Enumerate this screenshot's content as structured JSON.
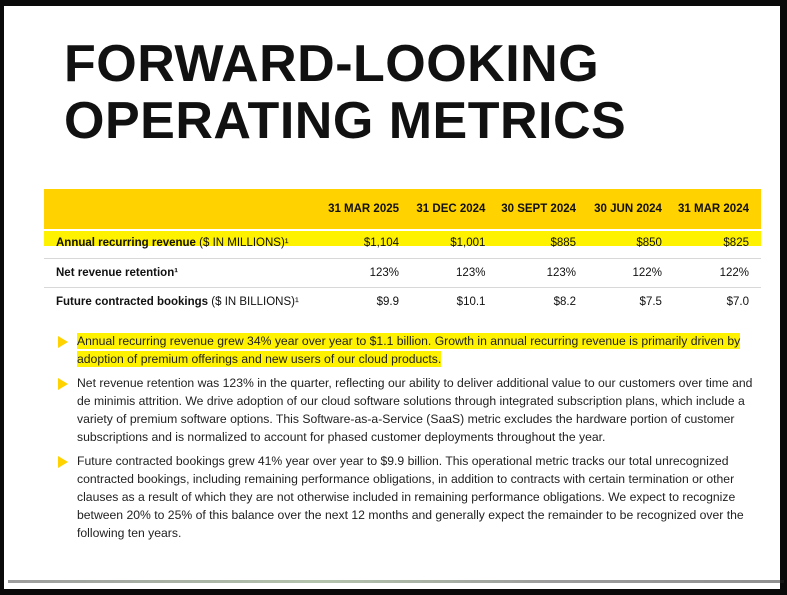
{
  "title_line1": "FORWARD-LOOKING",
  "title_line2": "OPERATING METRICS",
  "table": {
    "columns": [
      "",
      "31 MAR 2025",
      "31 DEC 2024",
      "30 SEPT 2024",
      "30 JUN 2024",
      "31 MAR 2024"
    ],
    "rows": [
      {
        "label": "Annual recurring revenue",
        "unit": " ($ IN MILLIONS)¹",
        "values": [
          "$1,104",
          "$1,001",
          "$885",
          "$850",
          "$825"
        ],
        "highlighted": true
      },
      {
        "label": "Net revenue retention¹",
        "unit": "",
        "values": [
          "123%",
          "123%",
          "123%",
          "122%",
          "122%"
        ],
        "highlighted": false
      },
      {
        "label": "Future contracted bookings",
        "unit": " ($ IN BILLIONS)¹",
        "values": [
          "$9.9",
          "$10.1",
          "$8.2",
          "$7.5",
          "$7.0"
        ],
        "highlighted": false
      }
    ]
  },
  "bullets": [
    {
      "text": "Annual recurring revenue grew 34% year over year to $1.1 billion. Growth in annual recurring revenue is primarily driven by adoption of premium offerings and new users of our cloud products.",
      "highlighted": true
    },
    {
      "text": "Net revenue retention was 123% in the quarter, reflecting our ability to deliver additional value to our customers over time and de minimis attrition. We drive adoption of our cloud software solutions through integrated subscription plans, which include a variety of premium software options. This Software-as-a-Service (SaaS) metric excludes the hardware portion of customer subscriptions and is normalized to account for phased customer deployments throughout the year.",
      "highlighted": false
    },
    {
      "text": "Future contracted bookings grew 41% year over year to $9.9 billion. This operational metric tracks our total unrecognized contracted bookings, including remaining performance obligations, in addition to contracts with certain termination or other clauses as a result of which they are not otherwise included in remaining performance obligations. We expect to recognize between 20% to 25% of this balance over the next 12 months and generally expect the remainder to be recognized over the following ten years.",
      "highlighted": false
    }
  ],
  "colors": {
    "accent_yellow": "#ffd200",
    "highlighter": "#fff200",
    "text": "#111111"
  }
}
